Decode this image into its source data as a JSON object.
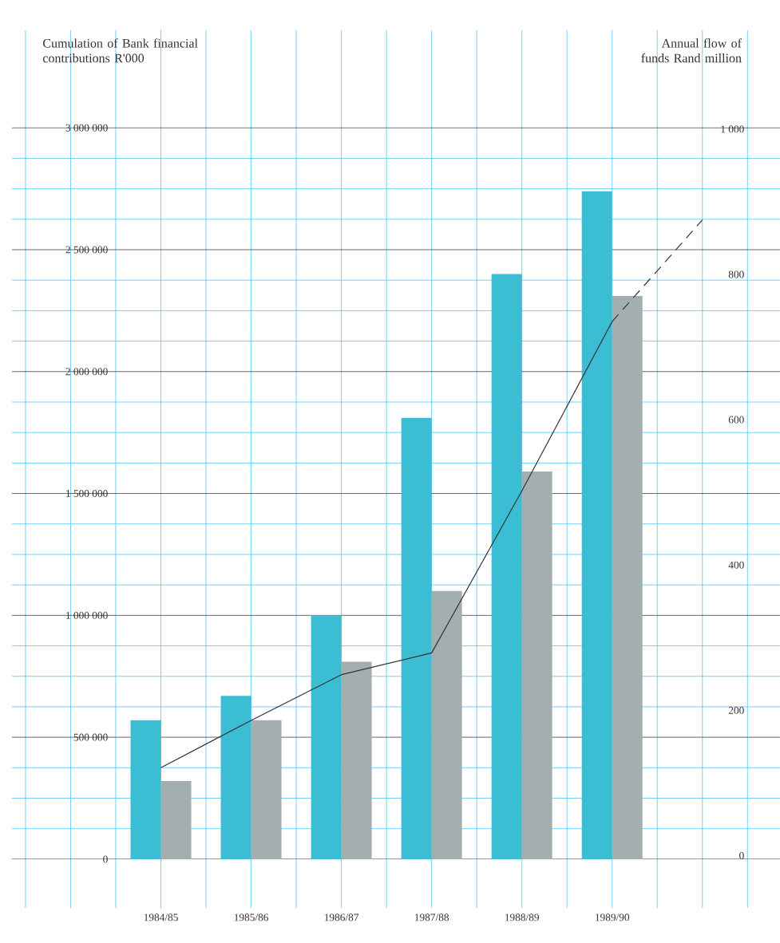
{
  "chart_data": {
    "type": "bar",
    "ylabel": "Cumulation of Bank financial contributions R'000",
    "y2label": "Annual flow of funds Rand million",
    "categories": [
      "1984/85",
      "1985/86",
      "1986/87",
      "1987/88",
      "1988/89",
      "1989/90",
      null
    ],
    "series": [
      {
        "color": "#3bbdd4",
        "values": [
          570000,
          670000,
          1000000,
          1810000,
          2400000,
          2740000,
          null
        ]
      },
      {
        "color": "#a3aeb0",
        "values": [
          320000,
          570000,
          810000,
          1100000,
          1590000,
          2310000,
          null
        ]
      },
      {
        "type": "line",
        "axis": "y2",
        "color": "#333333",
        "values": [
          121,
          186,
          249,
          279,
          502,
          735,
          null
        ]
      },
      {
        "type": "line",
        "axis": "y2",
        "color": "#333333",
        "line_style": "dashed",
        "values": [
          null,
          null,
          null,
          null,
          null,
          735,
          875
        ]
      }
    ],
    "ylim": [
      -200000,
      3400000
    ],
    "yticks": [
      {
        "value": 0,
        "label": "0"
      },
      {
        "value": 500000,
        "label": "500 000"
      },
      {
        "value": 1000000,
        "label": "1 000 000"
      },
      {
        "value": 1500000,
        "label": "1 500 000"
      },
      {
        "value": 2000000,
        "label": "2 000 000"
      },
      {
        "value": 2500000,
        "label": "2 500 000"
      },
      {
        "value": 3000000,
        "label": "3 000 000"
      }
    ],
    "y2lim": [
      -72,
      1136
    ],
    "y2ticks": [
      0,
      200,
      400,
      600,
      800,
      {
        "value": 1000,
        "label": "1 000"
      }
    ],
    "grid": true,
    "marker": "none"
  }
}
